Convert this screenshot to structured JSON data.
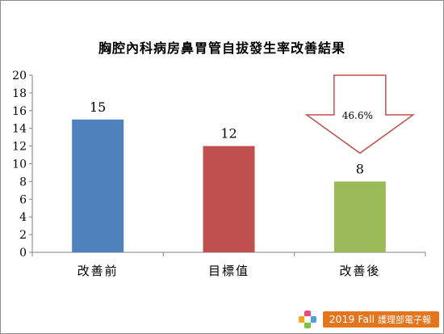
{
  "chart_data": {
    "type": "bar",
    "title": "胸腔內科病房鼻胃管自拔發生率改善結果",
    "categories": [
      "改善前",
      "目標值",
      "改善後"
    ],
    "values": [
      15,
      12,
      8
    ],
    "bar_colors": [
      "#4f81bd",
      "#c0504d",
      "#9bbb59"
    ],
    "ylim": [
      0,
      20
    ],
    "yticks": [
      0,
      2,
      4,
      6,
      8,
      10,
      12,
      14,
      16,
      18,
      20
    ],
    "grid": false,
    "legend": "none",
    "xlabel": "",
    "ylabel": "",
    "annotation": {
      "type": "down-arrow",
      "text": "46.6%",
      "from_category": "改善前",
      "to_category": "改善後",
      "color": "#c0504d"
    }
  },
  "footer": {
    "brand": "2019 Fall",
    "text": "護理部電子報",
    "badge_color": "#e3751f",
    "logo": "cross-logo-icon"
  }
}
